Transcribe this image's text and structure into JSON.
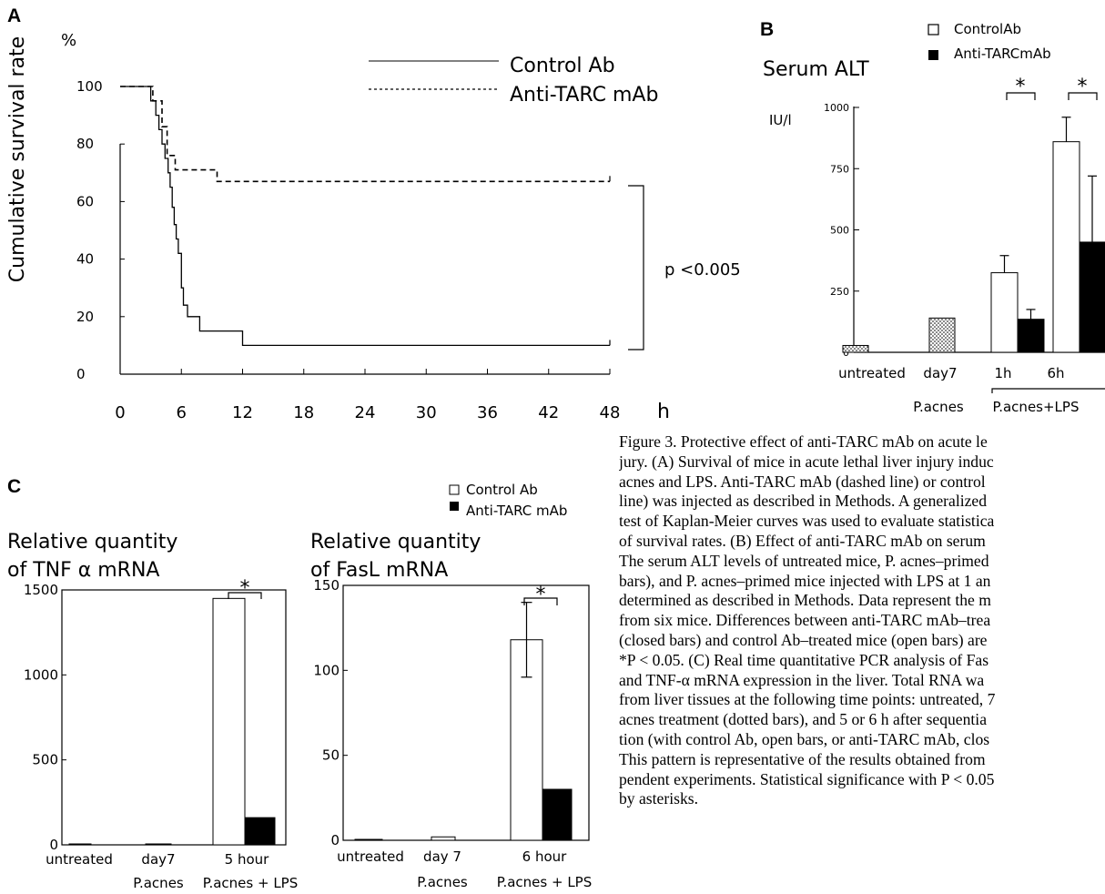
{
  "chart_data": [
    {
      "panel": "A",
      "type": "line",
      "ylabel": "Cumulative survival rate",
      "yunit": "%",
      "xunit": "h",
      "xlim": [
        0,
        48
      ],
      "ylim": [
        0,
        100
      ],
      "xticks": [
        0,
        6,
        12,
        18,
        24,
        30,
        36,
        42,
        48
      ],
      "yticks": [
        0,
        20,
        40,
        60,
        80,
        100
      ],
      "legend": [
        "Control Ab",
        "Anti-TARC mAb"
      ],
      "series": [
        {
          "name": "Control Ab",
          "style": "solid",
          "points": [
            [
              0,
              100
            ],
            [
              3,
              100
            ],
            [
              3,
              95
            ],
            [
              3.5,
              95
            ],
            [
              3.5,
              90
            ],
            [
              3.8,
              90
            ],
            [
              3.8,
              85
            ],
            [
              4.1,
              85
            ],
            [
              4.1,
              80
            ],
            [
              4.4,
              80
            ],
            [
              4.4,
              75
            ],
            [
              4.7,
              75
            ],
            [
              4.7,
              70
            ],
            [
              4.9,
              70
            ],
            [
              4.9,
              65
            ],
            [
              5.1,
              65
            ],
            [
              5.1,
              58
            ],
            [
              5.3,
              58
            ],
            [
              5.3,
              52
            ],
            [
              5.5,
              52
            ],
            [
              5.5,
              47
            ],
            [
              5.7,
              47
            ],
            [
              5.7,
              42
            ],
            [
              6,
              42
            ],
            [
              6,
              30
            ],
            [
              6.2,
              30
            ],
            [
              6.2,
              24
            ],
            [
              6.6,
              24
            ],
            [
              6.6,
              20
            ],
            [
              7.8,
              20
            ],
            [
              7.8,
              15
            ],
            [
              12,
              15
            ],
            [
              12,
              10
            ],
            [
              48,
              10
            ]
          ]
        },
        {
          "name": "Anti-TARC mAb",
          "style": "dashed",
          "points": [
            [
              0,
              100
            ],
            [
              3.2,
              100
            ],
            [
              3.2,
              95
            ],
            [
              4.1,
              95
            ],
            [
              4.1,
              86
            ],
            [
              4.6,
              86
            ],
            [
              4.6,
              76
            ],
            [
              5.4,
              76
            ],
            [
              5.4,
              71
            ],
            [
              9.5,
              71
            ],
            [
              9.5,
              67
            ],
            [
              48,
              67
            ]
          ]
        }
      ],
      "annotation": "p <0.005"
    },
    {
      "panel": "B",
      "type": "bar",
      "title": "Serum ALT",
      "yunit": "IU/l",
      "ylim": [
        0,
        1000
      ],
      "yticks": [
        0,
        250,
        500,
        750,
        1000
      ],
      "categories": [
        "untreated",
        "day7",
        "1h",
        "6h"
      ],
      "group_labels": [
        "P.acnes",
        "P.acnes+LPS"
      ],
      "legend": [
        "ControlAb",
        "Anti-TARCmAb"
      ],
      "bars": [
        {
          "category": "untreated",
          "value": 28,
          "fill": "dotted"
        },
        {
          "category": "day7",
          "value": 140,
          "fill": "dotted"
        },
        {
          "category": "1h",
          "series": "ControlAb",
          "value": 325,
          "error": 70,
          "fill": "open"
        },
        {
          "category": "1h",
          "series": "Anti-TARCmAb",
          "value": 135,
          "error": 40,
          "fill": "closed"
        },
        {
          "category": "6h",
          "series": "ControlAb",
          "value": 860,
          "error": 100,
          "fill": "open"
        },
        {
          "category": "6h",
          "series": "Anti-TARCmAb",
          "value": 450,
          "error": 270,
          "fill": "closed"
        }
      ],
      "significance": [
        "*",
        "*"
      ]
    },
    {
      "panel": "C",
      "type": "bar",
      "title_lines": [
        "Relative quantity",
        "of TNF α mRNA"
      ],
      "ylim": [
        0,
        1500
      ],
      "yticks": [
        0,
        500,
        1000,
        1500
      ],
      "categories": [
        "untreated",
        "day7",
        "5 hour"
      ],
      "sublabels": [
        "",
        "P.acnes",
        "P.acnes + LPS"
      ],
      "bars": [
        {
          "category": "untreated",
          "value": 0,
          "fill": "open"
        },
        {
          "category": "day7",
          "value": 5,
          "fill": "open"
        },
        {
          "category": "5 hour",
          "series": "Control Ab",
          "value": 1450,
          "fill": "open"
        },
        {
          "category": "5 hour",
          "series": "Anti-TARC mAb",
          "value": 160,
          "fill": "closed"
        }
      ],
      "significance": "*"
    },
    {
      "panel": "C",
      "type": "bar",
      "title_lines": [
        "Relative quantity",
        "of FasL mRNA"
      ],
      "ylim": [
        0,
        150
      ],
      "yticks": [
        0,
        50,
        100,
        150
      ],
      "categories": [
        "untreated",
        "day 7",
        "6 hour"
      ],
      "sublabels": [
        "",
        "P.acnes",
        "P.acnes + LPS"
      ],
      "legend": [
        "Control Ab",
        "Anti-TARC mAb"
      ],
      "bars": [
        {
          "category": "untreated",
          "value": 0.5,
          "fill": "open"
        },
        {
          "category": "day 7",
          "value": 2,
          "fill": "open"
        },
        {
          "category": "6 hour",
          "series": "Control Ab",
          "value": 118,
          "error": 22,
          "fill": "open"
        },
        {
          "category": "6 hour",
          "series": "Anti-TARC mAb",
          "value": 30,
          "fill": "closed"
        }
      ],
      "significance": "*"
    }
  ],
  "panels": {
    "a": "A",
    "b": "B",
    "c": "C"
  },
  "caption_lines": [
    "Figure 3.  Protective effect of anti-TARC mAb on acute le",
    "jury. (A) Survival of mice in acute lethal liver injury induc",
    "acnes and LPS. Anti-TARC mAb (dashed line) or control",
    "line) was injected as described in Methods. A generalized",
    "test of Kaplan-Meier curves was used to evaluate statistica",
    "of survival rates. (B) Effect of anti-TARC mAb on serum",
    "The serum ALT levels of untreated mice, P. acnes–primed",
    "bars), and P. acnes–primed mice injected with LPS at 1 an",
    "determined as described in Methods. Data represent the m",
    "from six mice. Differences between anti-TARC mAb–trea",
    "(closed bars) and control Ab–treated mice (open bars) are",
    "*P < 0.05. (C) Real time quantitative PCR analysis of Fas",
    "and TNF-α mRNA expression in the liver. Total RNA wa",
    "from liver tissues at the following time points: untreated, 7",
    "acnes treatment (dotted bars), and 5 or 6 h after sequentia",
    "tion (with control Ab, open bars, or anti-TARC mAb, clos",
    "This pattern is representative of the results obtained from",
    "pendent experiments. Statistical significance with P < 0.05",
    "by asterisks."
  ]
}
